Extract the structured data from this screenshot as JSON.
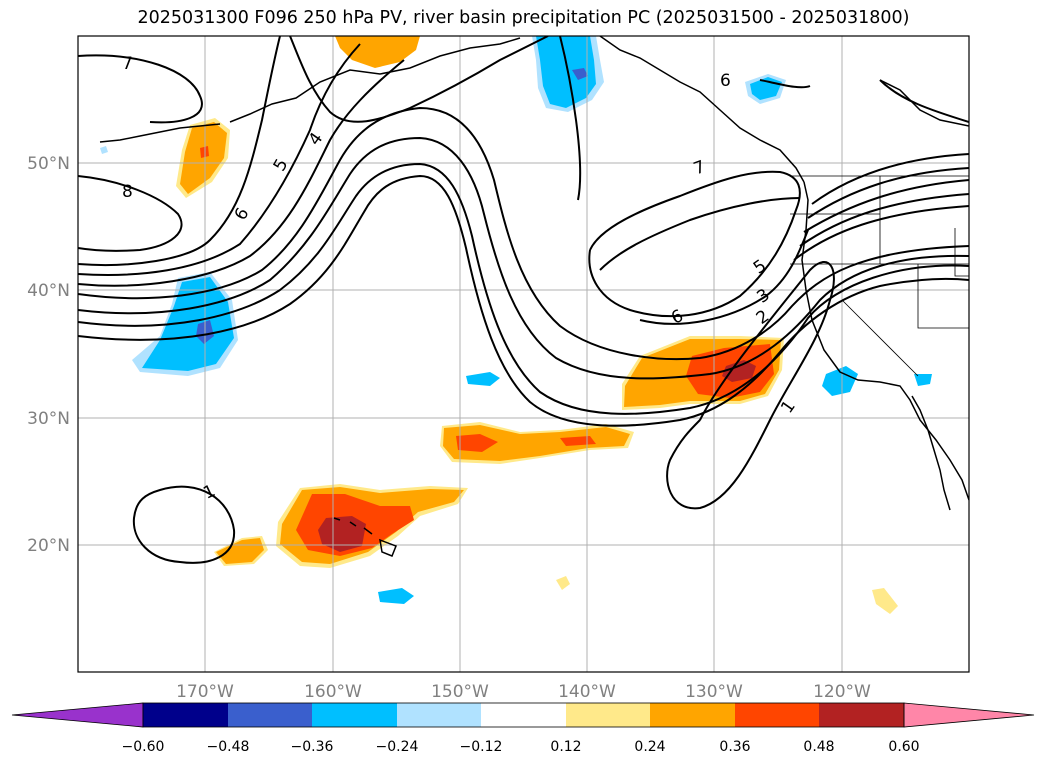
{
  "title": "2025031300 F096 250 hPa PV, river basin precipitation PC (2025031500 - 2025031800)",
  "colors": {
    "neg_060": "#9932cc",
    "neg_048": "#00008b",
    "neg_036": "#3a5fcd",
    "neg_024": "#00bfff",
    "neg_012": "#b0e2ff",
    "neutral": "#ffffff",
    "pos_012": "#ffe98a",
    "pos_024": "#ffa500",
    "pos_036": "#ff4500",
    "pos_048": "#b22222",
    "pos_060": "#ff86a8",
    "contour": "#000000",
    "grid": "#b0b0b0",
    "coast": "#000000"
  },
  "lat_labels": [
    "50°N",
    "40°N",
    "30°N",
    "20°N"
  ],
  "lon_labels": [
    "170°W",
    "160°W",
    "150°W",
    "140°W",
    "130°W",
    "120°W"
  ],
  "contour_labels": {
    "c7_left": "7",
    "c8_left": "8",
    "c6_left": "6",
    "c5_left": "5",
    "c4_left": "4",
    "c6_top": "6",
    "c7_right": "7",
    "c5_right": "5",
    "c3_right": "3",
    "c2_right": "2",
    "c6_right": "6",
    "c1_right": "1",
    "c1_left": "1"
  },
  "colorbar": {
    "ticks": [
      "−0.60",
      "−0.48",
      "−0.36",
      "−0.24",
      "−0.12",
      "0.12",
      "0.24",
      "0.36",
      "0.48",
      "0.60"
    ]
  }
}
